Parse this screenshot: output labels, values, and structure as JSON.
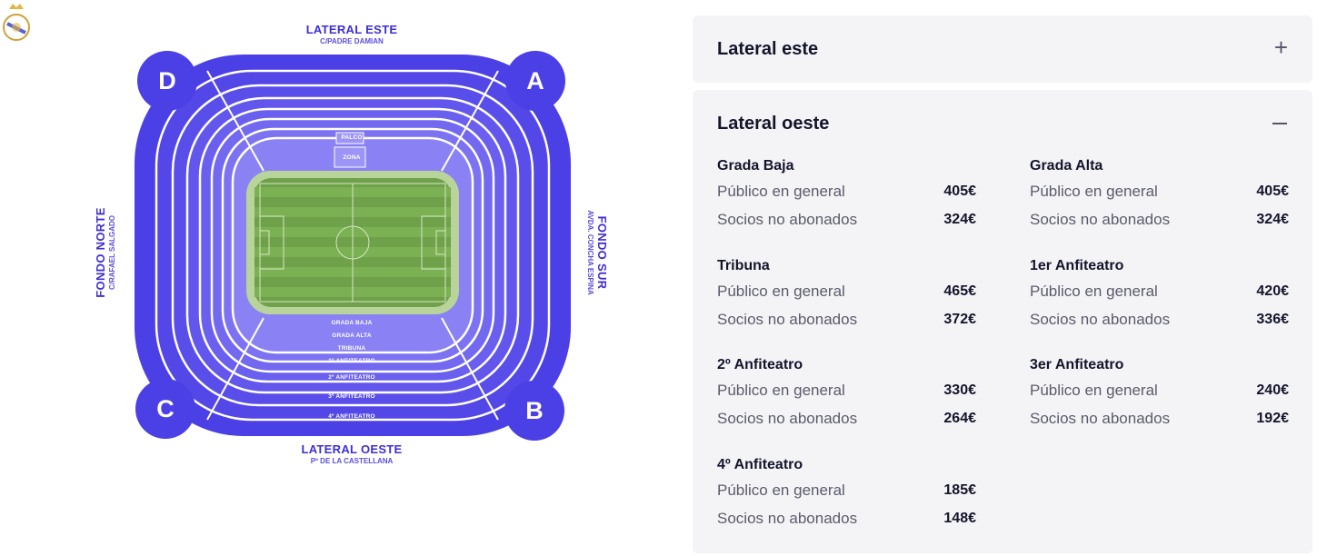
{
  "map": {
    "labels": {
      "top": {
        "main": "LATERAL ESTE",
        "sub": "C/PADRE DAMIAN"
      },
      "bottom": {
        "main": "LATERAL OESTE",
        "sub": "Pº DE LA CASTELLANA"
      },
      "left": {
        "main": "FONDO NORTE",
        "sub": "C/RAFAEL SALGADO"
      },
      "right": {
        "main": "FONDO SUR",
        "sub": "AVDA. CONCHA ESPINA"
      }
    },
    "corners": {
      "d": "D",
      "a": "A",
      "c": "C",
      "b": "B"
    },
    "ring_labels": [
      "GRADA BAJA",
      "GRADA ALTA",
      "TRIBUNA",
      "1º ANFITEATRO",
      "2º ANFITEATRO",
      "3º ANFITEATRO",
      "4º ANFITEATRO"
    ],
    "top_ring_labels": [
      "PALCO",
      "ZONA"
    ],
    "colors": {
      "outer": "#4b3fe6",
      "ring_mid": "#6a5ff0",
      "ring_light": "#8d85f5",
      "field": "#6fa04a",
      "field_stripe": "#7bb053"
    }
  },
  "panels": {
    "este": {
      "title": "Lateral este",
      "toggle_icon": "plus-icon"
    },
    "oeste": {
      "title": "Lateral oeste",
      "toggle_icon": "minus-icon",
      "sections": [
        {
          "title": "Grada Baja",
          "rows": [
            {
              "label": "Público en general",
              "price": "405€"
            },
            {
              "label": "Socios no abonados",
              "price": "324€"
            }
          ]
        },
        {
          "title": "Grada Alta",
          "rows": [
            {
              "label": "Público en general",
              "price": "405€"
            },
            {
              "label": "Socios no abonados",
              "price": "324€"
            }
          ]
        },
        {
          "title": "Tribuna",
          "rows": [
            {
              "label": "Público en general",
              "price": "465€"
            },
            {
              "label": "Socios no abonados",
              "price": "372€"
            }
          ]
        },
        {
          "title": "1er Anfiteatro",
          "rows": [
            {
              "label": "Público en general",
              "price": "420€"
            },
            {
              "label": "Socios no abonados",
              "price": "336€"
            }
          ]
        },
        {
          "title": "2º Anfiteatro",
          "rows": [
            {
              "label": "Público en general",
              "price": "330€"
            },
            {
              "label": "Socios no abonados",
              "price": "264€"
            }
          ]
        },
        {
          "title": "3er Anfiteatro",
          "rows": [
            {
              "label": "Público en general",
              "price": "240€"
            },
            {
              "label": "Socios no abonados",
              "price": "192€"
            }
          ]
        },
        {
          "title": "4º Anfiteatro",
          "rows": [
            {
              "label": "Público en general",
              "price": "185€"
            },
            {
              "label": "Socios no abonados",
              "price": "148€"
            }
          ]
        }
      ]
    }
  }
}
